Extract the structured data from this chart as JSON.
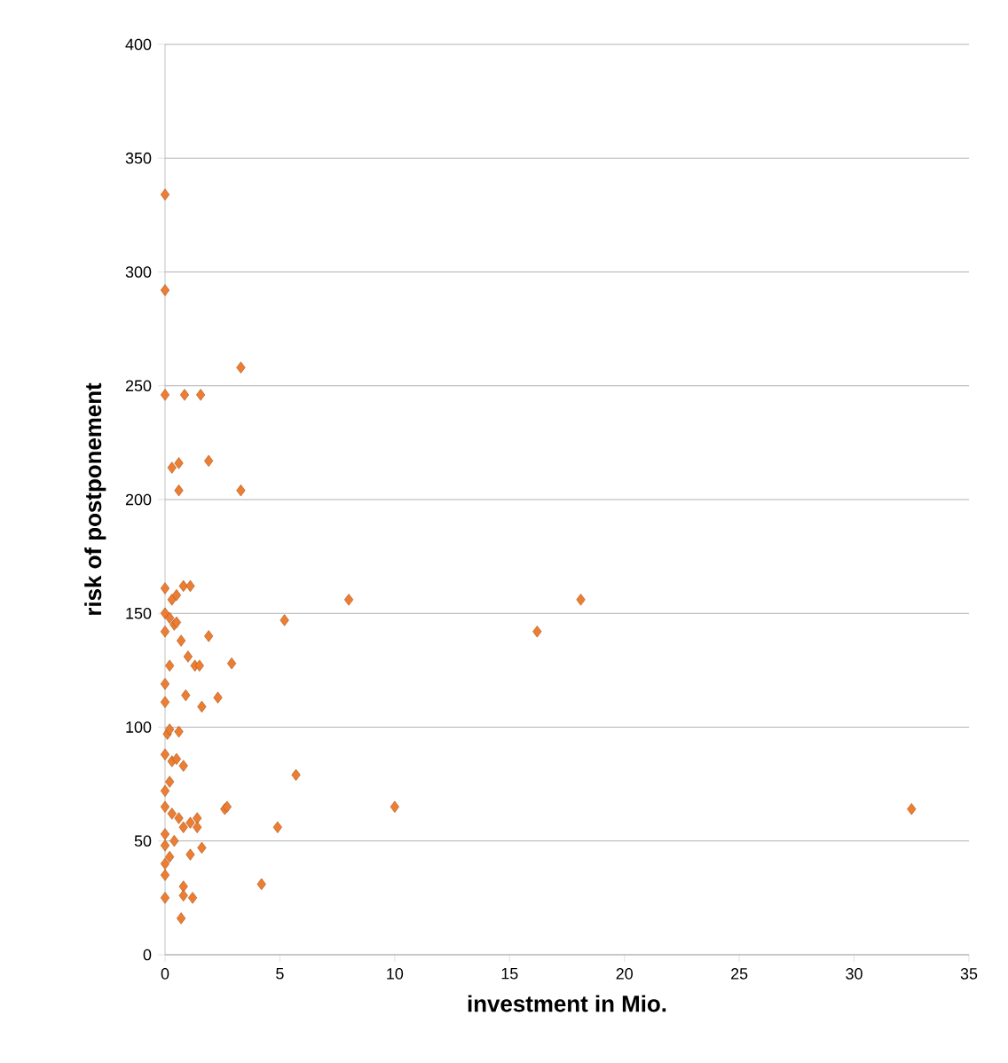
{
  "chart_data": {
    "type": "scatter",
    "xlabel": "investment in Mio.",
    "ylabel": "risk of postponement",
    "xlim": [
      0,
      35
    ],
    "ylim": [
      0,
      400
    ],
    "xticks": [
      0,
      5,
      10,
      15,
      20,
      25,
      30,
      35
    ],
    "yticks": [
      0,
      50,
      100,
      150,
      200,
      250,
      300,
      350,
      400
    ],
    "grid": "y",
    "marker": "diamond",
    "series": [
      {
        "color": "#ed7d31",
        "x": [
          0,
          0,
          3.3,
          0,
          0.85,
          1.55,
          1.9,
          0.3,
          0.6,
          0.6,
          3.3,
          0,
          0.8,
          1.1,
          0.3,
          0.5,
          8,
          18.1,
          5.2,
          16.2,
          0,
          0.2,
          0.4,
          0,
          0.5,
          1.9,
          0.7,
          1,
          1.3,
          1.5,
          2.9,
          0.2,
          0,
          2.3,
          1.6,
          0.9,
          0,
          0.1,
          0.6,
          0.2,
          0,
          0.3,
          0.5,
          0.8,
          5.7,
          0,
          0.2,
          0,
          0.3,
          2.6,
          2.7,
          10,
          32.5,
          0.6,
          1.1,
          1.4,
          4.9,
          0,
          0.8,
          1.4,
          0,
          0.4,
          1.6,
          1.1,
          0,
          0.2,
          4.2,
          0,
          0.8,
          0,
          1.2,
          0.8,
          0.7
        ],
        "values": [
          334,
          292,
          258,
          246,
          246,
          246,
          217,
          214,
          216,
          204,
          204,
          161,
          162,
          162,
          156,
          158,
          156,
          156,
          147,
          142,
          150,
          148,
          145,
          142,
          146,
          140,
          138,
          131,
          127,
          127,
          128,
          127,
          119,
          113,
          109,
          114,
          111,
          97,
          98,
          99,
          88,
          85,
          86,
          83,
          79,
          72,
          76,
          65,
          62,
          64,
          65,
          65,
          64,
          60,
          58,
          60,
          56,
          53,
          56,
          56,
          48,
          50,
          47,
          44,
          40,
          43,
          31,
          35,
          30,
          25,
          25,
          26,
          16
        ]
      }
    ]
  }
}
